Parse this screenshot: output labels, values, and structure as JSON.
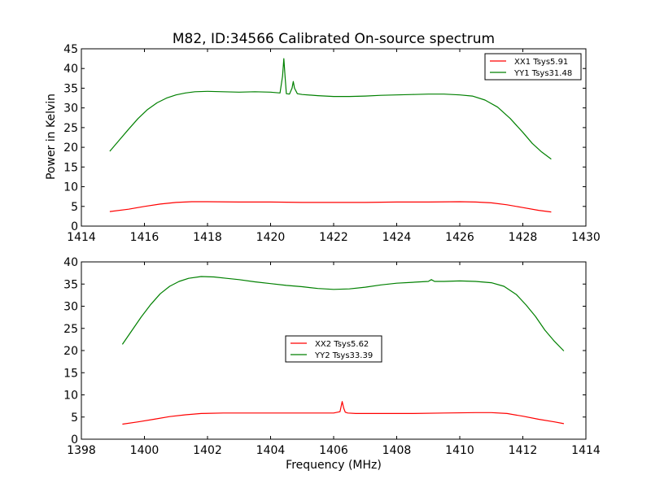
{
  "figure": {
    "title": "M82, ID:34566 Calibrated On-source spectrum",
    "background": "#ffffff"
  },
  "chart_data": [
    {
      "type": "line",
      "title": "M82, ID:34566 Calibrated On-source spectrum",
      "xlabel": "",
      "ylabel": "Power in Kelvin",
      "xlim": [
        1414,
        1430
      ],
      "ylim": [
        0,
        45
      ],
      "xticks": [
        1414,
        1416,
        1418,
        1420,
        1422,
        1424,
        1426,
        1428,
        1430
      ],
      "yticks": [
        0,
        5,
        10,
        15,
        20,
        25,
        30,
        35,
        40,
        45
      ],
      "grid": false,
      "legend_position": "top-right",
      "series": [
        {
          "name": "XX1 Tsys5.91",
          "color": "#ff0000",
          "x": [
            1414.9,
            1415.5,
            1416.0,
            1416.5,
            1417.0,
            1417.5,
            1418.0,
            1419.0,
            1420.0,
            1421.0,
            1422.0,
            1423.0,
            1424.0,
            1425.0,
            1426.0,
            1426.5,
            1427.0,
            1427.5,
            1428.0,
            1428.5,
            1428.9
          ],
          "y": [
            3.7,
            4.3,
            5.0,
            5.6,
            6.0,
            6.2,
            6.2,
            6.1,
            6.1,
            6.0,
            6.0,
            6.0,
            6.1,
            6.1,
            6.2,
            6.1,
            5.9,
            5.4,
            4.7,
            4.0,
            3.6
          ]
        },
        {
          "name": "YY1 Tsys31.48",
          "color": "#008000",
          "x": [
            1414.9,
            1415.2,
            1415.5,
            1415.8,
            1416.1,
            1416.4,
            1416.7,
            1417.0,
            1417.3,
            1417.6,
            1418.0,
            1418.5,
            1419.0,
            1419.5,
            1420.0,
            1420.3,
            1420.38,
            1420.42,
            1420.46,
            1420.5,
            1420.6,
            1420.68,
            1420.72,
            1420.76,
            1420.85,
            1421.0,
            1421.5,
            1422.0,
            1422.5,
            1423.0,
            1423.5,
            1424.0,
            1424.5,
            1425.0,
            1425.5,
            1426.0,
            1426.4,
            1426.8,
            1427.2,
            1427.6,
            1428.0,
            1428.3,
            1428.6,
            1428.9
          ],
          "y": [
            19.0,
            21.8,
            24.6,
            27.3,
            29.6,
            31.3,
            32.5,
            33.3,
            33.8,
            34.1,
            34.2,
            34.1,
            34.0,
            34.1,
            34.0,
            33.8,
            38.0,
            42.5,
            38.0,
            33.6,
            33.5,
            35.0,
            36.7,
            35.0,
            33.6,
            33.4,
            33.1,
            32.9,
            32.9,
            33.0,
            33.2,
            33.3,
            33.4,
            33.5,
            33.5,
            33.3,
            33.0,
            32.0,
            30.2,
            27.3,
            23.8,
            21.0,
            18.8,
            17.0
          ]
        }
      ]
    },
    {
      "type": "line",
      "title": "",
      "xlabel": "Frequency (MHz)",
      "ylabel": "",
      "xlim": [
        1398,
        1414
      ],
      "ylim": [
        0,
        40
      ],
      "xticks": [
        1398,
        1400,
        1402,
        1404,
        1406,
        1408,
        1410,
        1412,
        1414
      ],
      "yticks": [
        0,
        5,
        10,
        15,
        20,
        25,
        30,
        35,
        40
      ],
      "grid": false,
      "legend_position": "center",
      "series": [
        {
          "name": "XX2 Tsys5.62",
          "color": "#ff0000",
          "x": [
            1399.3,
            1399.8,
            1400.3,
            1400.8,
            1401.3,
            1401.8,
            1402.5,
            1403.5,
            1404.5,
            1405.5,
            1406.0,
            1406.2,
            1406.27,
            1406.32,
            1406.37,
            1406.45,
            1406.7,
            1407.5,
            1408.5,
            1409.5,
            1410.5,
            1411.0,
            1411.5,
            1412.0,
            1412.5,
            1413.0,
            1413.3
          ],
          "y": [
            3.4,
            3.9,
            4.5,
            5.1,
            5.5,
            5.8,
            5.9,
            5.9,
            5.9,
            5.9,
            5.9,
            6.2,
            8.5,
            7.0,
            6.1,
            5.9,
            5.8,
            5.8,
            5.8,
            5.9,
            6.0,
            6.0,
            5.8,
            5.2,
            4.5,
            3.9,
            3.5
          ]
        },
        {
          "name": "YY2 Tsys33.39",
          "color": "#008000",
          "x": [
            1399.3,
            1399.6,
            1399.9,
            1400.2,
            1400.5,
            1400.8,
            1401.1,
            1401.4,
            1401.8,
            1402.2,
            1402.6,
            1403.0,
            1403.5,
            1404.0,
            1404.5,
            1405.0,
            1405.5,
            1406.0,
            1406.5,
            1407.0,
            1407.5,
            1408.0,
            1408.5,
            1409.0,
            1409.1,
            1409.2,
            1409.5,
            1410.0,
            1410.5,
            1411.0,
            1411.4,
            1411.8,
            1412.1,
            1412.4,
            1412.7,
            1413.0,
            1413.3
          ],
          "y": [
            21.4,
            24.5,
            27.6,
            30.4,
            32.8,
            34.5,
            35.6,
            36.3,
            36.7,
            36.6,
            36.3,
            36.0,
            35.5,
            35.1,
            34.7,
            34.4,
            34.0,
            33.8,
            33.9,
            34.3,
            34.8,
            35.2,
            35.4,
            35.6,
            36.0,
            35.6,
            35.6,
            35.7,
            35.6,
            35.3,
            34.5,
            32.6,
            30.3,
            27.7,
            24.6,
            22.1,
            19.9
          ]
        }
      ]
    }
  ]
}
